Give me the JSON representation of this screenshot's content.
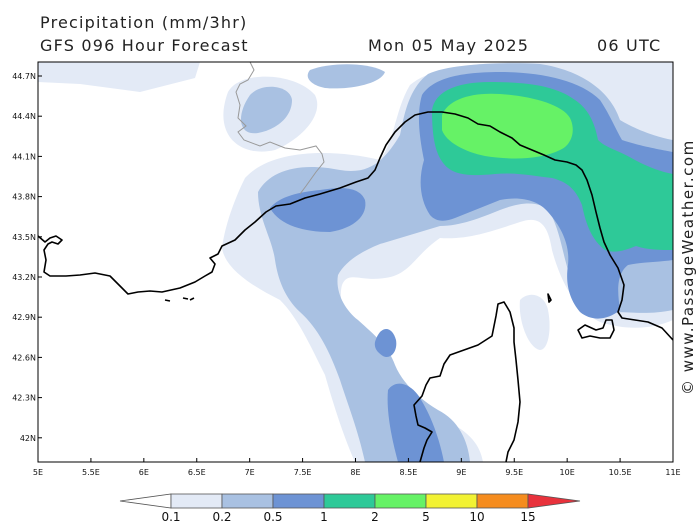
{
  "header": {
    "title": "Precipitation (mm/3hr)",
    "model": "GFS 096 Hour Forecast",
    "date": "Mon 05 May 2025",
    "time": "06 UTC"
  },
  "axes": {
    "y_ticks": [
      "44.7N",
      "44.4N",
      "44.1N",
      "43.8N",
      "43.5N",
      "43.2N",
      "42.9N",
      "42.6N",
      "42.3N",
      "42N"
    ],
    "x_ticks": [
      "5E",
      "5.5E",
      "6E",
      "6.5E",
      "7E",
      "7.5E",
      "8E",
      "8.5E",
      "9E",
      "9.5E",
      "10E",
      "10.5E",
      "11E"
    ]
  },
  "legend": {
    "labels": [
      "0.1",
      "0.2",
      "0.5",
      "1",
      "2",
      "5",
      "10",
      "15"
    ],
    "colors": [
      "#ffffff",
      "#e3eaf6",
      "#a9c1e2",
      "#6d93d4",
      "#2ec998",
      "#66f266",
      "#f2f233",
      "#f58c1e",
      "#e8323c"
    ]
  },
  "watermark": "© www.PassageWeather.com"
}
